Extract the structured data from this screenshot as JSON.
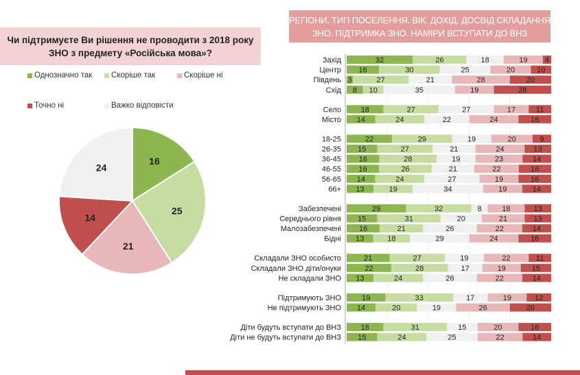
{
  "left_panel": {
    "question": "Чи підтримуєте Ви рішення не проводити з 2018 року ЗНО з предмету «Російська мова»?"
  },
  "right_panel": {
    "header": "РЕГІОНИ. ТИП ПОСЕЛЕННЯ. ВІК. ДОХІД. ДОСВІД  СКЛАДАННЯ ЗНО. ПІДТРИМКА ЗНО. НАМІРИ ВСТУПАТИ ДО ВНЗ"
  },
  "chart_data": [
    {
      "type": "pie",
      "categories": [
        "Однозначно так",
        "Скоріше  так",
        "Скоріше  ні",
        "Точно ні",
        "Важко відповісти"
      ],
      "values": [
        16,
        25,
        21,
        14,
        24
      ],
      "colors": [
        "#8db550",
        "#c6dca2",
        "#e8b8b8",
        "#c0504d",
        "#f0f0f0"
      ],
      "legend": "top"
    },
    {
      "type": "bar",
      "orientation": "horizontal-stacked-100",
      "series_names": [
        "Однозначно так",
        "Скоріше  так",
        "Важко відповісти",
        "Скоріше  ні",
        "Точно ні"
      ],
      "colors": [
        "#8db550",
        "#c6dca2",
        "#f0f0f0",
        "#e8b8b8",
        "#c0504d"
      ],
      "groups": [
        [
          {
            "label": "Захід",
            "values": [
              32,
              26,
              18,
              19,
              4
            ]
          },
          {
            "label": "Центр",
            "values": [
              16,
              30,
              25,
              20,
              10
            ]
          },
          {
            "label": "Південь",
            "values": [
              3,
              27,
              21,
              28,
              20
            ]
          },
          {
            "label": "Схід",
            "values": [
              8,
              10,
              35,
              19,
              28
            ]
          }
        ],
        [
          {
            "label": "Село",
            "values": [
              18,
              27,
              27,
              17,
              11
            ]
          },
          {
            "label": "Місто",
            "values": [
              14,
              24,
              22,
              24,
              16
            ]
          }
        ],
        [
          {
            "label": "18-25",
            "values": [
              22,
              29,
              19,
              20,
              9
            ]
          },
          {
            "label": "26-35",
            "values": [
              15,
              27,
              21,
              24,
              13
            ]
          },
          {
            "label": "36-45",
            "values": [
              16,
              28,
              19,
              23,
              14
            ]
          },
          {
            "label": "46-55",
            "values": [
              16,
              26,
              21,
              22,
              16
            ]
          },
          {
            "label": "56-65",
            "values": [
              14,
              24,
              27,
              19,
              16
            ]
          },
          {
            "label": "66+",
            "values": [
              13,
              19,
              34,
              19,
              14
            ]
          }
        ],
        [
          {
            "label": "Забезпечені",
            "values": [
              29,
              32,
              8,
              18,
              13
            ]
          },
          {
            "label": "Середнього рівня",
            "values": [
              15,
              31,
              20,
              21,
              13
            ]
          },
          {
            "label": "Малозабезпечені",
            "values": [
              16,
              21,
              26,
              22,
              14
            ]
          },
          {
            "label": "Бідні",
            "values": [
              13,
              18,
              29,
              24,
              16
            ]
          }
        ],
        [
          {
            "label": "Складали ЗНО особисто",
            "values": [
              21,
              27,
              19,
              22,
              11
            ]
          },
          {
            "label": "Складали ЗНО діти/онуки",
            "values": [
              22,
              28,
              17,
              19,
              15
            ]
          },
          {
            "label": "Не складали ЗНО",
            "values": [
              13,
              24,
              26,
              22,
              14
            ]
          }
        ],
        [
          {
            "label": "Підтримують ЗНО",
            "values": [
              19,
              33,
              17,
              19,
              12
            ]
          },
          {
            "label": "Не підтримують ЗНО",
            "values": [
              14,
              20,
              19,
              26,
              20
            ]
          }
        ],
        [
          {
            "label": "Діти будуть вступати до ВНЗ",
            "values": [
              18,
              31,
              15,
              20,
              16
            ]
          },
          {
            "label": "Діти не будуть вступати до ВНЗ",
            "values": [
              15,
              24,
              25,
              22,
              14
            ]
          }
        ]
      ]
    }
  ]
}
